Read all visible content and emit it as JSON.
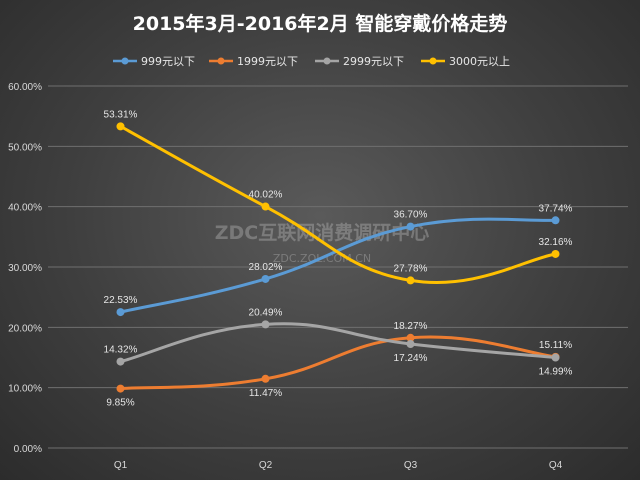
{
  "watermark": {
    "line1": "ZDC互联网消费调研中心",
    "line2": "ZDC.ZOL.COM.CN"
  },
  "chart_data": {
    "type": "line",
    "title": "2015年3月-2016年2月  智能穿戴价格走势",
    "categories": [
      "Q1",
      "Q2",
      "Q3",
      "Q4"
    ],
    "ylim": [
      0,
      60
    ],
    "yticks": [
      0,
      10,
      20,
      30,
      40,
      50,
      60
    ],
    "ytick_labels": [
      "0.00%",
      "10.00%",
      "20.00%",
      "30.00%",
      "40.00%",
      "50.00%",
      "60.00%"
    ],
    "grid": true,
    "legend_position": "top",
    "series": [
      {
        "name": "999元以下",
        "color": "#5b9bd5",
        "values": [
          22.53,
          28.02,
          36.7,
          37.74
        ],
        "labels": [
          "22.53%",
          "28.02%",
          "36.70%",
          "37.74%"
        ],
        "label_pos": [
          "above",
          "above",
          "above",
          "above"
        ]
      },
      {
        "name": "1999元以下",
        "color": "#ed7d31",
        "values": [
          9.85,
          11.47,
          18.27,
          15.11
        ],
        "labels": [
          "9.85%",
          "11.47%",
          "18.27%",
          "15.11%"
        ],
        "label_pos": [
          "below",
          "below",
          "above",
          "above"
        ]
      },
      {
        "name": "2999元以下",
        "color": "#a5a5a5",
        "values": [
          14.32,
          20.49,
          17.24,
          14.99
        ],
        "labels": [
          "14.32%",
          "20.49%",
          "17.24%",
          "14.99%"
        ],
        "label_pos": [
          "above",
          "above",
          "below",
          "below"
        ]
      },
      {
        "name": "3000元以上",
        "color": "#ffc000",
        "values": [
          53.31,
          40.02,
          27.78,
          32.16
        ],
        "labels": [
          "53.31%",
          "40.02%",
          "27.78%",
          "32.16%"
        ],
        "label_pos": [
          "above",
          "above",
          "above",
          "above"
        ]
      }
    ]
  }
}
